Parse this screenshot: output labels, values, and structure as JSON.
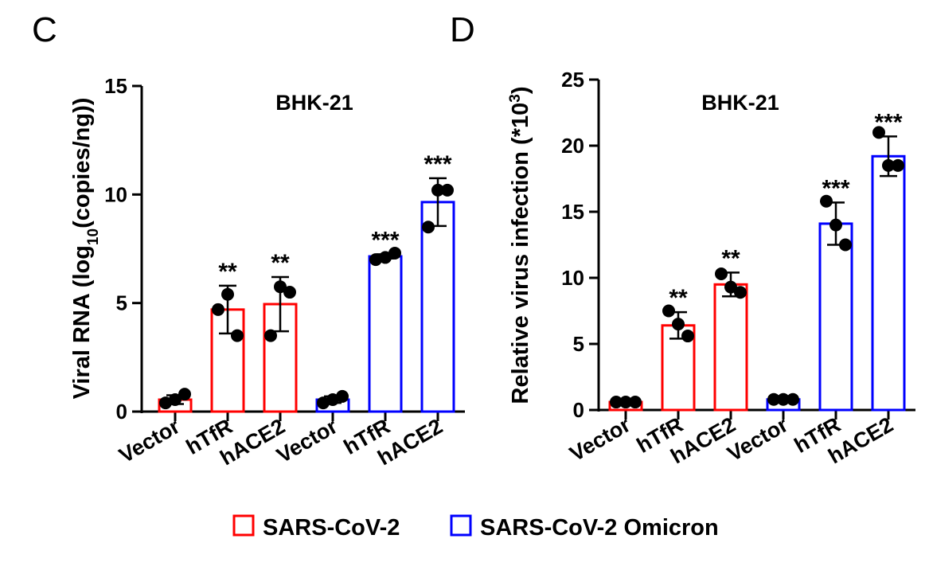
{
  "legend": [
    {
      "label": "SARS-CoV-2",
      "color": "#ff0000"
    },
    {
      "label": "SARS-CoV-2 Omicron",
      "color": "#0000ff"
    }
  ],
  "chart_data": [
    {
      "type": "bar",
      "panel_letter": "C",
      "title": "BHK-21",
      "ylabel_main": "Viral RNA (log",
      "ylabel_sub": "10",
      "ylabel_end": "(copies/ng))",
      "ylim": [
        0,
        15
      ],
      "yticks": [
        "0",
        "5",
        "10",
        "15"
      ],
      "yticks_values": [
        0,
        5,
        10,
        15
      ],
      "categories": [
        "Vector",
        "hTfR",
        "hACE2",
        "Vector",
        "hTfR",
        "hACE2"
      ],
      "group": [
        "SARS-CoV-2",
        "SARS-CoV-2",
        "SARS-CoV-2",
        "SARS-CoV-2 Omicron",
        "SARS-CoV-2 Omicron",
        "SARS-CoV-2 Omicron"
      ],
      "colors": [
        "#ff0000",
        "#ff0000",
        "#ff0000",
        "#0000ff",
        "#0000ff",
        "#0000ff"
      ],
      "values": [
        0.55,
        4.7,
        4.95,
        0.55,
        7.15,
        9.65
      ],
      "errors": [
        0.2,
        1.1,
        1.25,
        0.15,
        0.1,
        1.1
      ],
      "points": [
        [
          0.4,
          0.8,
          0.55
        ],
        [
          4.7,
          3.5,
          5.4
        ],
        [
          3.5,
          5.5,
          5.75
        ],
        [
          0.4,
          0.7,
          0.55
        ],
        [
          7.0,
          7.3,
          7.1
        ],
        [
          8.5,
          10.2,
          10.2
        ]
      ],
      "significance": [
        "",
        "**",
        "**",
        "",
        "***",
        "***"
      ]
    },
    {
      "type": "bar",
      "panel_letter": "D",
      "title": "BHK-21",
      "ylabel_main": "Relative virus infection (*10",
      "ylabel_sup": "3",
      "ylabel_end": ")",
      "ylim": [
        0,
        25
      ],
      "yticks": [
        "0",
        "5",
        "10",
        "15",
        "20",
        "25"
      ],
      "yticks_values": [
        0,
        5,
        10,
        15,
        20,
        25
      ],
      "categories": [
        "Vector",
        "hTfR",
        "hACE2",
        "Vector",
        "hTfR",
        "hACE2"
      ],
      "group": [
        "SARS-CoV-2",
        "SARS-CoV-2",
        "SARS-CoV-2",
        "SARS-CoV-2 Omicron",
        "SARS-CoV-2 Omicron",
        "SARS-CoV-2 Omicron"
      ],
      "colors": [
        "#ff0000",
        "#ff0000",
        "#ff0000",
        "#0000ff",
        "#0000ff",
        "#0000ff"
      ],
      "values": [
        0.6,
        6.4,
        9.5,
        0.8,
        14.1,
        19.2
      ],
      "errors": [
        0.1,
        1.0,
        0.9,
        0.1,
        1.6,
        1.5
      ],
      "points": [
        [
          0.6,
          0.6,
          0.6
        ],
        [
          7.5,
          5.6,
          6.5
        ],
        [
          10.3,
          8.9,
          9.3
        ],
        [
          0.8,
          0.8,
          0.8
        ],
        [
          15.8,
          12.5,
          14.0
        ],
        [
          21.0,
          18.5,
          18.5
        ]
      ],
      "significance": [
        "",
        "**",
        "**",
        "",
        "***",
        "***"
      ]
    }
  ]
}
